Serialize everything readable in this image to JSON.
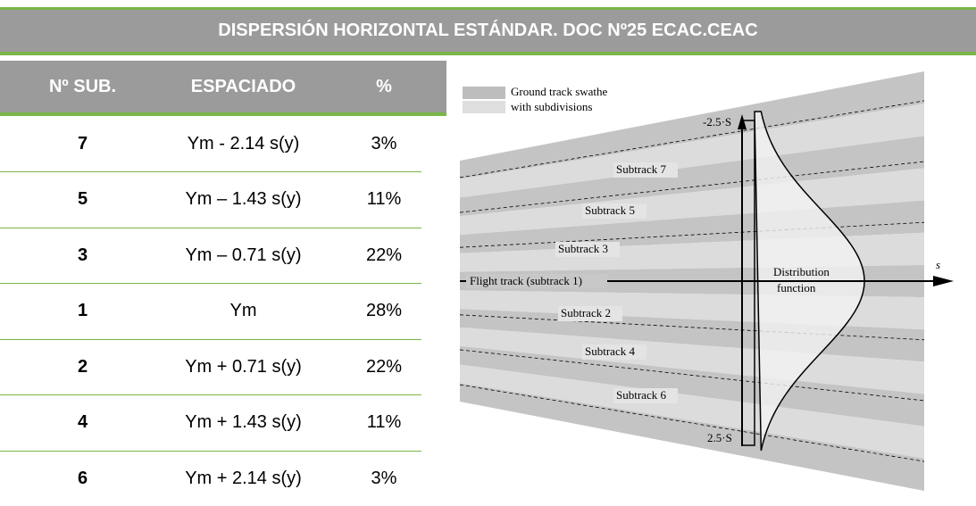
{
  "title": "DISPERSIÓN HORIZONTAL ESTÁNDAR. DOC Nº25 ECAC.CEAC",
  "table": {
    "header": [
      "Nº SUB.",
      "ESPACIADO",
      "%"
    ],
    "rows": [
      [
        "7",
        "Ym - 2.14 s(y)",
        "3%"
      ],
      [
        "5",
        "Ym – 1.43 s(y)",
        "11%"
      ],
      [
        "3",
        "Ym – 0.71 s(y)",
        "22%"
      ],
      [
        "1",
        "Ym",
        "28%"
      ],
      [
        "2",
        "Ym + 0.71 s(y)",
        "22%"
      ],
      [
        "4",
        "Ym + 1.43 s(y)",
        "11%"
      ],
      [
        "6",
        "Ym + 2.14 s(y)",
        "3%"
      ]
    ]
  },
  "diagram": {
    "legend": [
      "Ground track swathe",
      "with subdivisions"
    ],
    "upper_bound": "-2.5·S",
    "lower_bound": "2.5·S",
    "axis_label": "s",
    "flight_track": "Flight track (subtrack 1)",
    "subtracks": [
      "Subtrack 7",
      "Subtrack 5",
      "Subtrack 3",
      "Subtrack 2",
      "Subtrack 4",
      "Subtrack 6"
    ],
    "distribution": [
      "Distribution",
      "function"
    ]
  }
}
